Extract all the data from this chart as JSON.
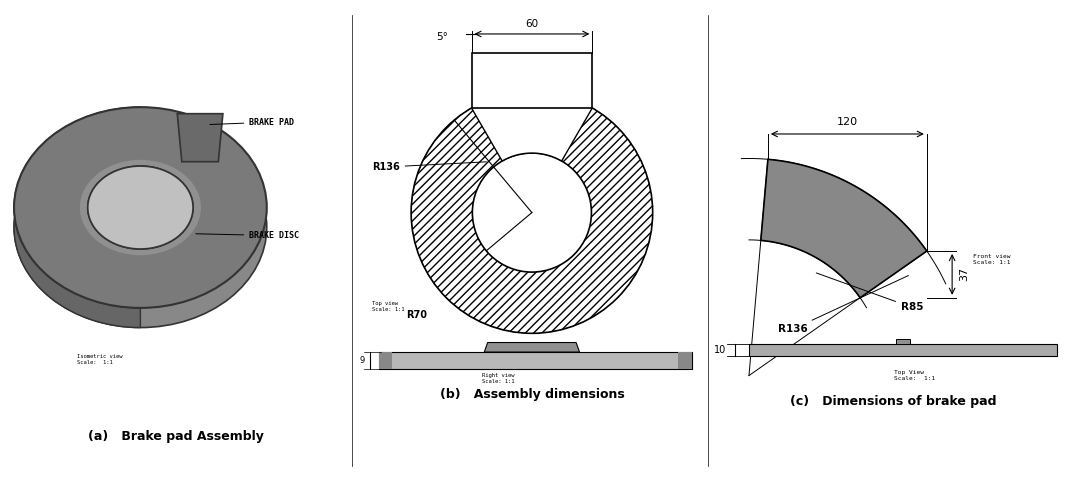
{
  "fig_width": 10.8,
  "fig_height": 4.96,
  "bg_color": "#ffffff",
  "panel_a_caption": "(a)   Brake pad Assembly",
  "panel_b_caption": "(b)   Assembly dimensions",
  "panel_c_caption": "(c)   Dimensions of brake pad",
  "brake_pad_label": "BRAKE PAD",
  "brake_disc_label": "BRAKE DISC",
  "isometric_label": "Isometric view\nScale:  1:1",
  "top_view_b_label": "Top view\nScale: 1:1",
  "right_view_b_label": "Right view\nScale: 1:1",
  "front_view_c_label": "Front view\nScale: 1:1",
  "top_view_c_label": "Top View\nScale:  1:1",
  "dim_60": "60",
  "dim_5": "5°",
  "dim_R136_b": "R136",
  "dim_R70": "R70",
  "dim_120": "120",
  "dim_37": "37",
  "dim_R136_c": "R136",
  "dim_R85": "R85",
  "dim_10": "10",
  "dim_9": "9"
}
